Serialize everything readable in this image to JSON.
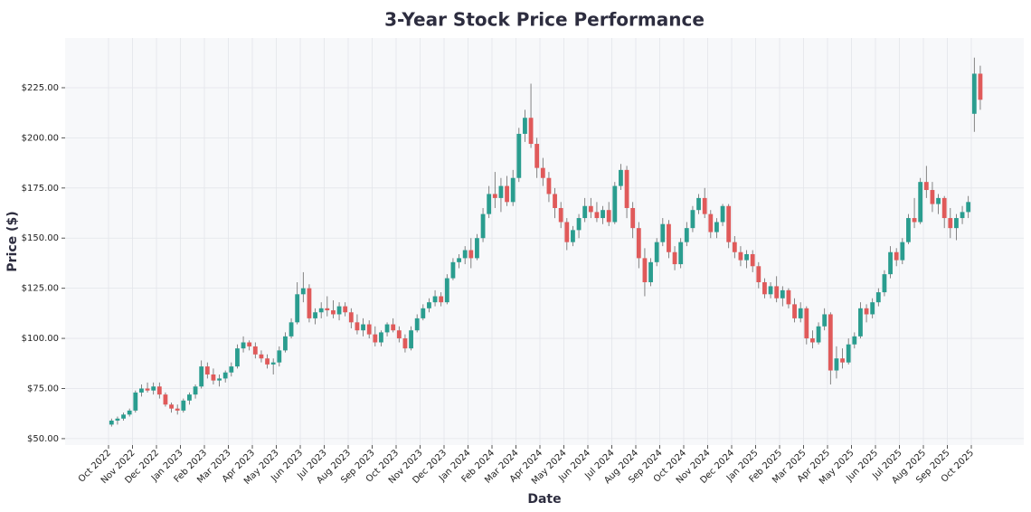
{
  "chart_data": {
    "type": "candlestick",
    "title": "3-Year Stock Price Performance",
    "xlabel": "Date",
    "ylabel": "Price ($)",
    "up_color": "#2a9d8f",
    "down_color": "#e05a5a",
    "grid": true,
    "ylim": [
      46.8,
      249.8
    ],
    "yticks": [
      {
        "value": 50,
        "label": "$50.00"
      },
      {
        "value": 75,
        "label": "$75.00"
      },
      {
        "value": 100,
        "label": "$100.00"
      },
      {
        "value": 125,
        "label": "$125.00"
      },
      {
        "value": 150,
        "label": "$150.00"
      },
      {
        "value": 175,
        "label": "$175.00"
      },
      {
        "value": 200,
        "label": "$200.00"
      },
      {
        "value": 225,
        "label": "$225.00"
      }
    ],
    "x": [
      "Oct 2022",
      "Nov 2022",
      "Dec 2022",
      "Jan 2023",
      "Feb 2023",
      "Mar 2023",
      "Apr 2023",
      "May 2023",
      "Jun 2023",
      "Jul 2023",
      "Aug 2023",
      "Sep 2023",
      "Oct 2023",
      "Nov 2023",
      "Dec 2023",
      "Jan 2024",
      "Feb 2024",
      "Mar 2024",
      "Apr 2024",
      "May 2024",
      "Jun 2024",
      "Jul 2024",
      "Aug 2024",
      "Sep 2024",
      "Oct 2024",
      "Nov 2024",
      "Dec 2024",
      "Jan 2025",
      "Feb 2025",
      "Mar 2025",
      "Apr 2025",
      "May 2025",
      "Jun 2025",
      "Jul 2025",
      "Aug 2025",
      "Sep 2025",
      "Oct 2025"
    ],
    "open": [
      [
        57,
        59,
        60,
        62
      ],
      [
        64,
        73,
        75,
        74
      ],
      [
        76,
        72,
        67,
        65
      ],
      [
        64,
        69,
        72,
        76
      ],
      [
        86,
        82,
        79,
        80
      ],
      [
        83,
        86,
        95,
        98
      ],
      [
        96,
        92,
        90,
        87
      ],
      [
        88,
        94,
        101,
        108
      ],
      [
        122,
        125,
        110,
        113
      ],
      [
        115,
        114,
        112,
        116
      ],
      [
        113,
        108,
        104,
        107
      ],
      [
        102,
        98,
        103,
        107
      ],
      [
        104,
        100,
        95,
        104
      ],
      [
        110,
        115,
        118,
        121
      ],
      [
        118,
        130,
        138,
        140
      ],
      [
        144,
        140,
        150,
        162
      ],
      [
        172,
        170,
        176,
        168
      ],
      [
        180,
        202,
        210,
        197
      ],
      [
        185,
        180,
        172,
        165
      ],
      [
        158,
        148,
        154,
        160
      ],
      [
        166,
        163,
        160,
        164
      ],
      [
        158,
        176,
        184,
        165
      ],
      [
        155,
        140,
        128,
        138
      ],
      [
        148,
        157,
        143,
        137
      ],
      [
        148,
        155,
        164,
        170
      ],
      [
        162,
        153,
        158,
        166
      ],
      [
        148,
        143,
        139,
        142
      ],
      [
        136,
        128,
        122,
        126
      ],
      [
        120,
        124,
        117,
        110
      ],
      [
        115,
        100,
        98,
        106
      ],
      [
        112,
        84,
        90,
        88
      ],
      [
        97,
        101,
        115,
        112
      ],
      [
        118,
        123,
        132,
        143
      ],
      [
        139,
        148,
        160,
        158
      ],
      [
        178,
        174,
        167,
        170
      ],
      [
        160,
        155,
        160,
        163
      ],
      [
        212,
        232
      ]
    ],
    "high": [
      [
        60,
        61,
        63,
        65
      ],
      [
        74,
        77,
        78,
        78
      ],
      [
        78,
        73,
        68,
        67
      ],
      [
        70,
        73,
        77,
        89
      ],
      [
        88,
        85,
        82,
        84
      ],
      [
        88,
        97,
        101,
        99
      ],
      [
        98,
        94,
        92,
        90
      ],
      [
        96,
        103,
        110,
        128
      ],
      [
        133,
        127,
        115,
        118
      ],
      [
        121,
        119,
        118,
        118
      ],
      [
        115,
        112,
        110,
        109
      ],
      [
        106,
        104,
        108,
        110
      ],
      [
        106,
        102,
        106,
        112
      ],
      [
        117,
        120,
        124,
        123
      ],
      [
        132,
        140,
        142,
        146
      ],
      [
        150,
        152,
        165,
        176
      ],
      [
        183,
        180,
        181,
        184
      ],
      [
        205,
        214,
        227,
        200
      ],
      [
        190,
        183,
        175,
        168
      ],
      [
        160,
        156,
        162,
        170
      ],
      [
        170,
        168,
        166,
        168
      ],
      [
        178,
        187,
        186,
        168
      ],
      [
        158,
        145,
        140,
        150
      ],
      [
        160,
        159,
        146,
        150
      ],
      [
        158,
        166,
        172,
        175
      ],
      [
        164,
        160,
        167,
        167
      ],
      [
        151,
        146,
        144,
        144
      ],
      [
        138,
        130,
        128,
        131
      ],
      [
        126,
        125,
        120,
        118
      ],
      [
        116,
        104,
        108,
        115
      ],
      [
        113,
        96,
        95,
        100
      ],
      [
        103,
        118,
        117,
        120
      ],
      [
        125,
        134,
        146,
        145
      ],
      [
        150,
        162,
        170,
        180
      ],
      [
        186,
        178,
        172,
        171
      ],
      [
        165,
        162,
        166,
        171
      ],
      [
        240,
        236
      ]
    ],
    "low": [
      [
        56,
        57,
        59,
        61
      ],
      [
        63,
        71,
        73,
        72
      ],
      [
        70,
        66,
        63,
        62
      ],
      [
        63,
        67,
        70,
        75
      ],
      [
        80,
        77,
        76,
        78
      ],
      [
        81,
        85,
        93,
        94
      ],
      [
        90,
        88,
        85,
        82
      ],
      [
        86,
        93,
        100,
        107
      ],
      [
        118,
        108,
        107,
        110
      ],
      [
        111,
        110,
        109,
        111
      ],
      [
        105,
        102,
        101,
        100
      ],
      [
        96,
        96,
        101,
        103
      ],
      [
        98,
        93,
        94,
        103
      ],
      [
        109,
        113,
        116,
        116
      ],
      [
        117,
        129,
        135,
        137
      ],
      [
        135,
        139,
        148,
        160
      ],
      [
        165,
        163,
        166,
        166
      ],
      [
        178,
        198,
        195,
        180
      ],
      [
        176,
        168,
        160,
        155
      ],
      [
        144,
        146,
        150,
        158
      ],
      [
        160,
        158,
        157,
        156
      ],
      [
        157,
        174,
        160,
        150
      ],
      [
        135,
        121,
        126,
        136
      ],
      [
        146,
        140,
        134,
        135
      ],
      [
        146,
        153,
        162,
        160
      ],
      [
        150,
        150,
        156,
        145
      ],
      [
        140,
        136,
        135,
        133
      ],
      [
        125,
        120,
        120,
        118
      ],
      [
        116,
        115,
        108,
        108
      ],
      [
        97,
        95,
        97,
        104
      ],
      [
        77,
        80,
        85,
        87
      ],
      [
        95,
        100,
        108,
        110
      ],
      [
        116,
        121,
        130,
        136
      ],
      [
        137,
        147,
        155,
        157
      ],
      [
        170,
        163,
        162,
        155
      ],
      [
        150,
        149,
        157,
        160
      ],
      [
        203,
        214
      ]
    ],
    "close": [
      [
        59,
        60,
        62,
        64
      ],
      [
        73,
        75,
        74,
        76
      ],
      [
        72,
        67,
        65,
        64
      ],
      [
        69,
        72,
        76,
        86
      ],
      [
        82,
        79,
        80,
        83
      ],
      [
        86,
        95,
        98,
        96
      ],
      [
        92,
        90,
        87,
        88
      ],
      [
        94,
        101,
        108,
        122
      ],
      [
        125,
        110,
        113,
        115
      ],
      [
        114,
        112,
        116,
        113
      ],
      [
        108,
        104,
        107,
        102
      ],
      [
        98,
        103,
        107,
        104
      ],
      [
        100,
        95,
        104,
        110
      ],
      [
        115,
        118,
        121,
        118
      ],
      [
        130,
        138,
        140,
        144
      ],
      [
        140,
        150,
        162,
        172
      ],
      [
        170,
        176,
        168,
        180
      ],
      [
        202,
        210,
        197,
        185
      ],
      [
        180,
        172,
        165,
        158
      ],
      [
        148,
        154,
        160,
        166
      ],
      [
        163,
        160,
        164,
        158
      ],
      [
        176,
        184,
        165,
        155
      ],
      [
        140,
        128,
        138,
        148
      ],
      [
        157,
        143,
        137,
        148
      ],
      [
        155,
        164,
        170,
        162
      ],
      [
        153,
        158,
        166,
        148
      ],
      [
        143,
        139,
        142,
        136
      ],
      [
        128,
        122,
        126,
        120
      ],
      [
        124,
        117,
        110,
        115
      ],
      [
        100,
        98,
        106,
        112
      ],
      [
        84,
        90,
        88,
        97
      ],
      [
        101,
        115,
        112,
        118
      ],
      [
        123,
        132,
        143,
        139
      ],
      [
        148,
        160,
        158,
        178
      ],
      [
        174,
        167,
        170,
        160
      ],
      [
        155,
        160,
        163,
        168
      ],
      [
        232,
        219
      ]
    ]
  }
}
